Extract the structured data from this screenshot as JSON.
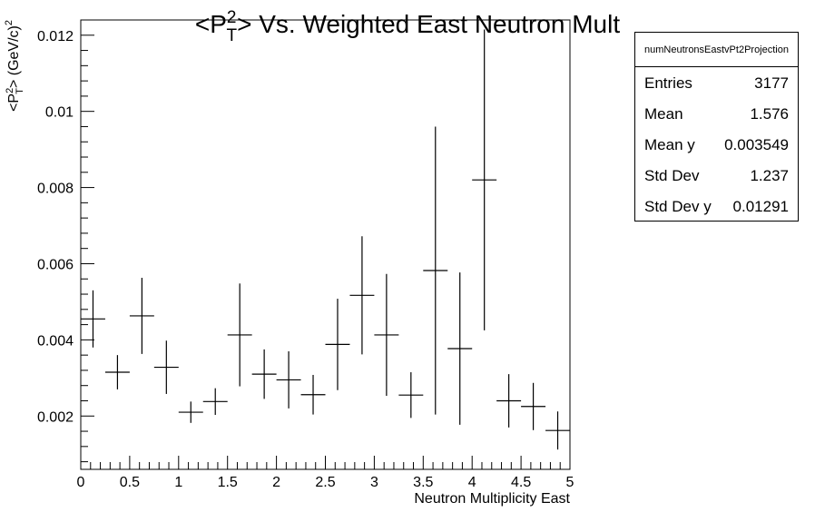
{
  "chart_data": {
    "type": "scatter",
    "title": "<P",
    "title_sup": "2",
    "title_sub": "T",
    "title_rest": "> Vs. Weighted East Neutron Mult",
    "xlabel": "Neutron Multiplicity East",
    "ylabel_pre": "<P",
    "ylabel_sup": "2",
    "ylabel_sub": "T",
    "ylabel_rest": "> (GeV/c)",
    "ylabel_exp": "2",
    "xlim": [
      0,
      5
    ],
    "ylim": [
      0.0006,
      0.0124
    ],
    "x_ticks": [
      {
        "v": 0,
        "label": "0"
      },
      {
        "v": 0.5,
        "label": "0.5"
      },
      {
        "v": 1,
        "label": "1"
      },
      {
        "v": 1.5,
        "label": "1.5"
      },
      {
        "v": 2,
        "label": "2"
      },
      {
        "v": 2.5,
        "label": "2.5"
      },
      {
        "v": 3,
        "label": "3"
      },
      {
        "v": 3.5,
        "label": "3.5"
      },
      {
        "v": 4,
        "label": "4"
      },
      {
        "v": 4.5,
        "label": "4.5"
      },
      {
        "v": 5,
        "label": "5"
      }
    ],
    "y_ticks": [
      {
        "v": 0.002,
        "label": "0.002"
      },
      {
        "v": 0.004,
        "label": "0.004"
      },
      {
        "v": 0.006,
        "label": "0.006"
      },
      {
        "v": 0.008,
        "label": "0.008"
      },
      {
        "v": 0.01,
        "label": "0.01"
      },
      {
        "v": 0.012,
        "label": "0.012"
      }
    ],
    "bin_width": 0.25,
    "points": [
      {
        "x": 0.125,
        "y": 0.00455,
        "err": 0.00075
      },
      {
        "x": 0.375,
        "y": 0.00315,
        "err": 0.00045
      },
      {
        "x": 0.625,
        "y": 0.00463,
        "err": 0.001
      },
      {
        "x": 0.875,
        "y": 0.00328,
        "err": 0.0007
      },
      {
        "x": 1.125,
        "y": 0.0021,
        "err": 0.00028
      },
      {
        "x": 1.375,
        "y": 0.00238,
        "err": 0.00035
      },
      {
        "x": 1.625,
        "y": 0.00413,
        "err": 0.00135
      },
      {
        "x": 1.875,
        "y": 0.0031,
        "err": 0.00065
      },
      {
        "x": 2.125,
        "y": 0.00295,
        "err": 0.00075
      },
      {
        "x": 2.375,
        "y": 0.00256,
        "err": 0.00052
      },
      {
        "x": 2.625,
        "y": 0.00388,
        "err": 0.0012
      },
      {
        "x": 2.875,
        "y": 0.00517,
        "err": 0.00155
      },
      {
        "x": 3.125,
        "y": 0.00413,
        "err": 0.0016
      },
      {
        "x": 3.375,
        "y": 0.00255,
        "err": 0.0006
      },
      {
        "x": 3.625,
        "y": 0.00582,
        "err": 0.00378
      },
      {
        "x": 3.875,
        "y": 0.00377,
        "err": 0.002
      },
      {
        "x": 4.125,
        "y": 0.0082,
        "err": 0.00395
      },
      {
        "x": 4.375,
        "y": 0.0024,
        "err": 0.0007
      },
      {
        "x": 4.625,
        "y": 0.00225,
        "err": 0.00062
      },
      {
        "x": 4.875,
        "y": 0.00162,
        "err": 0.0005
      }
    ],
    "grid": false,
    "legend": "top-right stats box"
  },
  "stats": {
    "name": "numNeutronsEastvPt2Projection",
    "rows": [
      {
        "key": "Entries",
        "value": "3177"
      },
      {
        "key": "Mean",
        "value": "1.576"
      },
      {
        "key": "Mean y",
        "value": "0.003549"
      },
      {
        "key": "Std Dev",
        "value": "1.237"
      },
      {
        "key": "Std Dev y",
        "value": "0.01291"
      }
    ]
  }
}
